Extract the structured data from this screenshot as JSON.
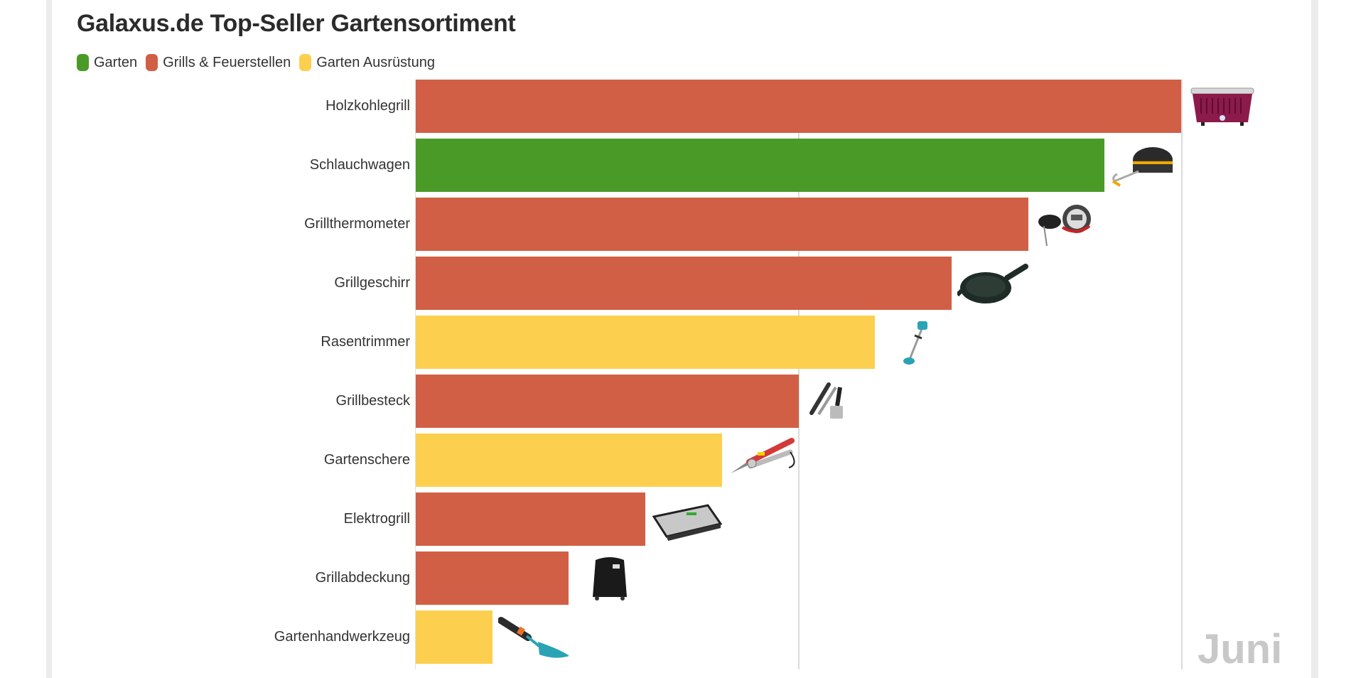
{
  "title": "Galaxus.de Top-Seller Gartensortiment",
  "legend": [
    {
      "label": "Garten",
      "color": "#4a9a28"
    },
    {
      "label": "Grills & Feuerstellen",
      "color": "#d15f45"
    },
    {
      "label": "Garten Ausrüstung",
      "color": "#fccf4f"
    }
  ],
  "period_label": "Juni",
  "chart_data": {
    "type": "bar",
    "orientation": "horizontal",
    "title": "Galaxus.de Top-Seller Gartensortiment",
    "subtitle": "Juni",
    "xlabel": "",
    "ylabel": "",
    "value_note": "Relative rank (bar lengths decrease in equal steps; no numeric axis shown)",
    "categories": [
      "Holzkohlegrill",
      "Schlauchwagen",
      "Grillthermometer",
      "Grillgeschirr",
      "Rasentrimmer",
      "Grillbesteck",
      "Gartenschere",
      "Elektrogrill",
      "Grillabdeckung",
      "Gartenhandwerkzeug"
    ],
    "values": [
      10,
      9,
      8,
      7,
      6,
      5,
      4,
      3,
      2,
      1
    ],
    "groups": [
      "Grills & Feuerstellen",
      "Garten",
      "Grills & Feuerstellen",
      "Grills & Feuerstellen",
      "Garten Ausrüstung",
      "Grills & Feuerstellen",
      "Garten Ausrüstung",
      "Grills & Feuerstellen",
      "Grills & Feuerstellen",
      "Garten Ausrüstung"
    ],
    "colors": [
      "#d15f45",
      "#4a9a28",
      "#d15f45",
      "#d15f45",
      "#fccf4f",
      "#d15f45",
      "#fccf4f",
      "#d15f45",
      "#d15f45",
      "#fccf4f"
    ],
    "xlim": [
      0,
      10
    ],
    "grid": true,
    "gridlines_at": [
      5,
      10
    ],
    "legend_position": "top-left",
    "images": [
      "purple-charcoal-grill",
      "hose-reel-cart",
      "grill-thermometer",
      "cast-iron-skillet",
      "string-trimmer",
      "grill-tongs-spatula",
      "pruning-shears",
      "contact-grill",
      "grill-cover",
      "hand-trowel"
    ]
  }
}
